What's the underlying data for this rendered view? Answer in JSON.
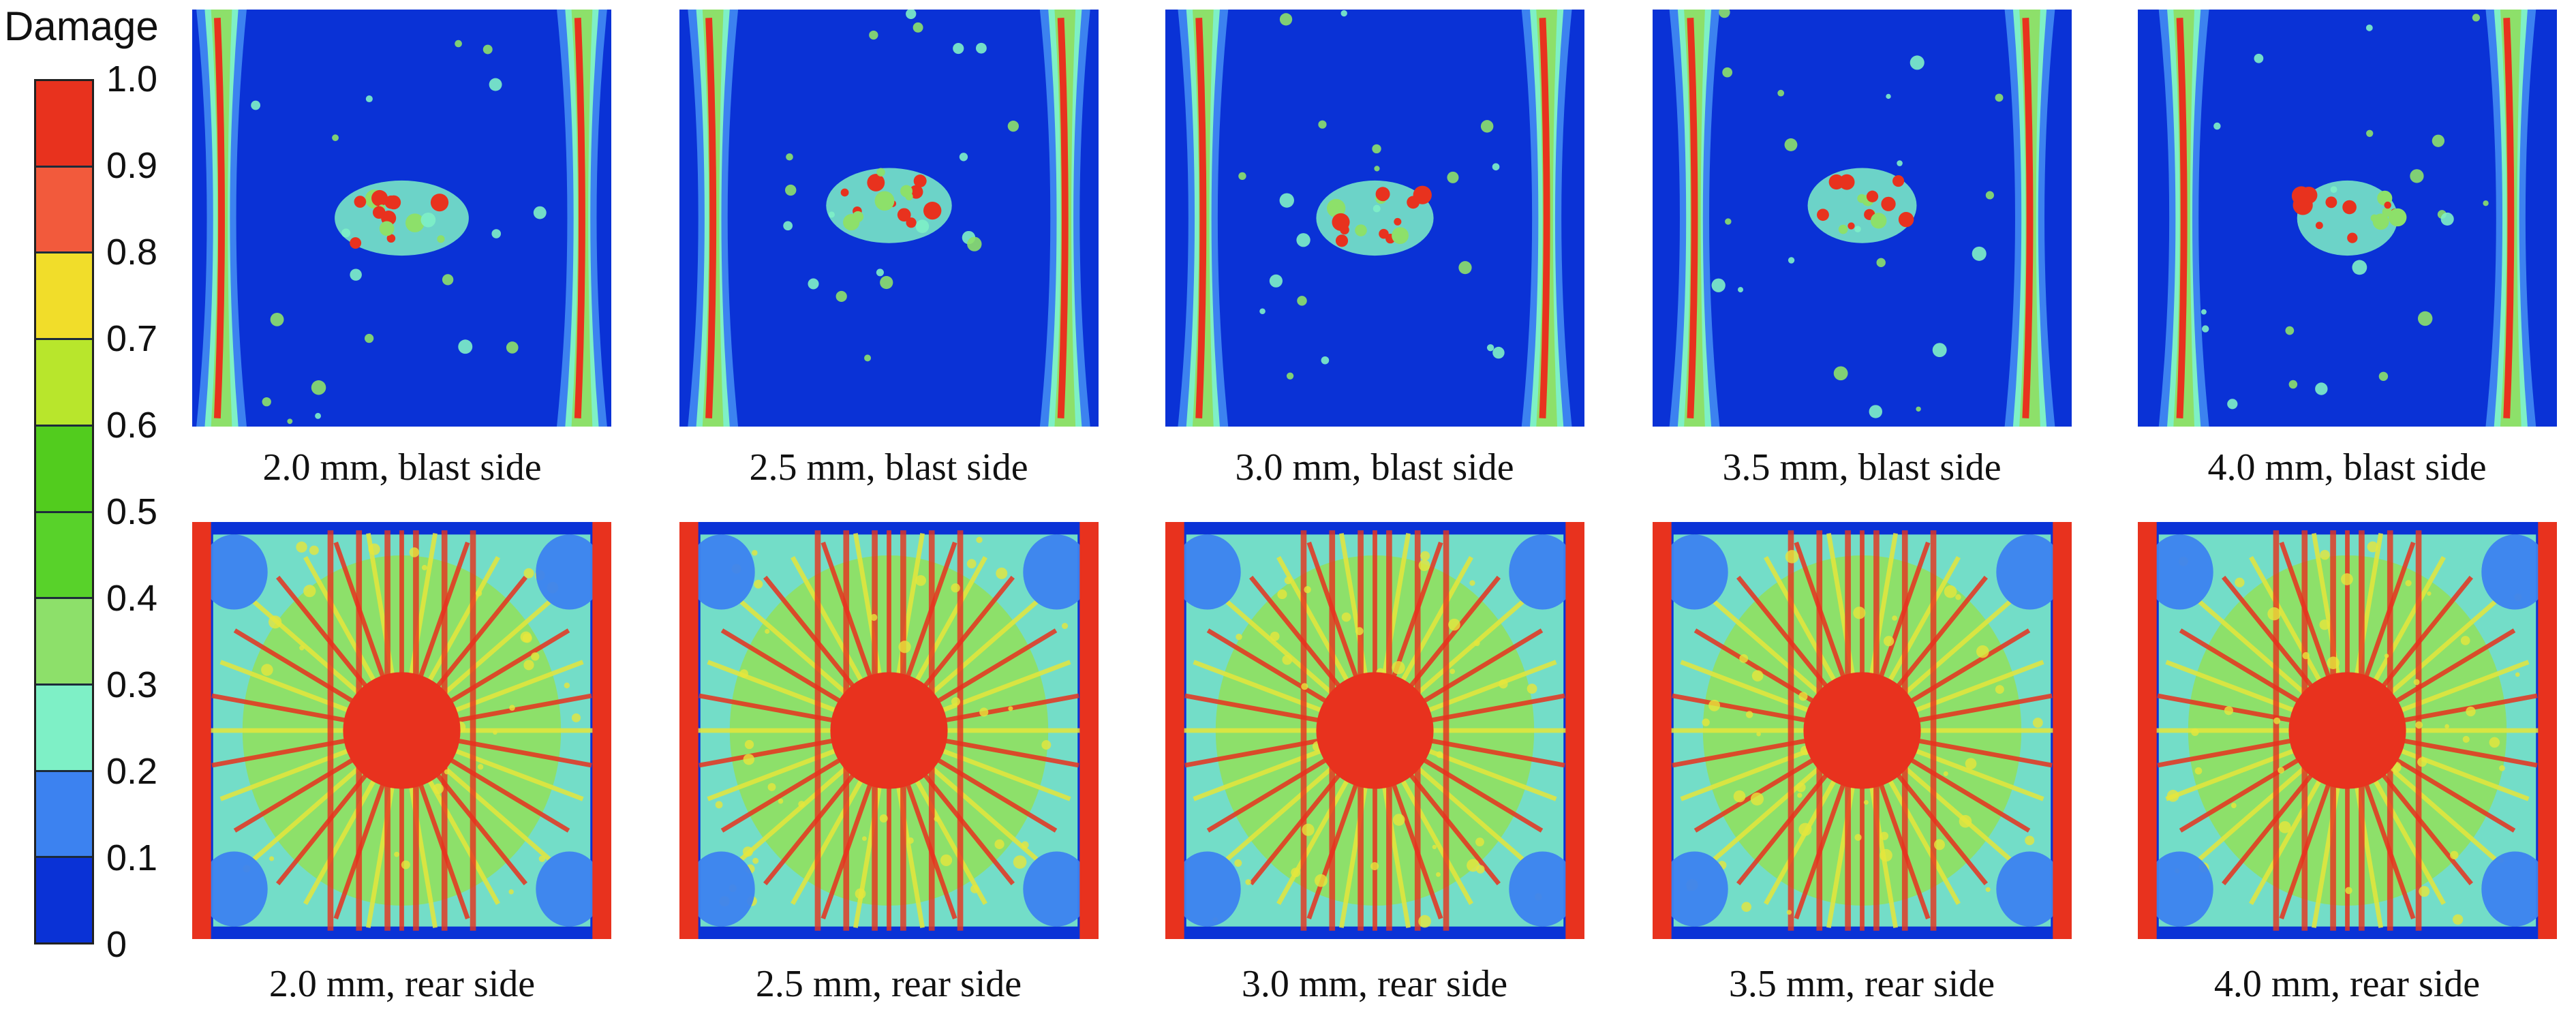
{
  "legend": {
    "title": "Damage",
    "ticks": [
      "1.0",
      "0.9",
      "0.8",
      "0.7",
      "0.6",
      "0.5",
      "0.4",
      "0.3",
      "0.2",
      "0.1",
      "0"
    ],
    "colors": [
      "#e8321e",
      "#f25a3c",
      "#f1dd2a",
      "#b8e62c",
      "#52cc1e",
      "#58d22a",
      "#8de06a",
      "#7ef0c6",
      "#3c82f0",
      "#0a32d6"
    ]
  },
  "palette": {
    "background": "#0a32d6",
    "low": "#3c82f0",
    "cyan": "#7ef0c6",
    "green": "#8de06a",
    "yellow": "#e6e63c",
    "red": "#e8321e"
  },
  "panels": [
    {
      "caption": "2.0 mm, blast side",
      "side": "blast"
    },
    {
      "caption": "2.5 mm, blast side",
      "side": "blast"
    },
    {
      "caption": "3.0 mm, blast side",
      "side": "blast"
    },
    {
      "caption": "3.5 mm, blast side",
      "side": "blast"
    },
    {
      "caption": "4.0 mm, blast side",
      "side": "blast"
    },
    {
      "caption": "2.0 mm, rear side",
      "side": "rear"
    },
    {
      "caption": "2.5 mm, rear side",
      "side": "rear"
    },
    {
      "caption": "3.0 mm, rear side",
      "side": "rear"
    },
    {
      "caption": "3.5 mm, rear side",
      "side": "rear"
    },
    {
      "caption": "4.0 mm, rear side",
      "side": "rear"
    }
  ]
}
